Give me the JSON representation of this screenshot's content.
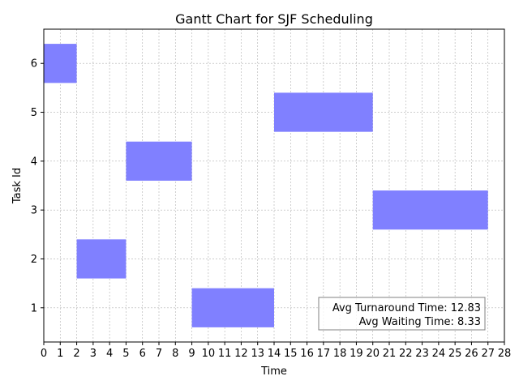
{
  "chart_data": {
    "type": "gantt",
    "title": "Gantt Chart for SJF Scheduling",
    "xlabel": "Time",
    "ylabel": "Task Id",
    "xlim": [
      0,
      28
    ],
    "ylim": [
      0.3,
      6.7
    ],
    "x_ticks": [
      0,
      1,
      2,
      3,
      4,
      5,
      6,
      7,
      8,
      9,
      10,
      11,
      12,
      13,
      14,
      15,
      16,
      17,
      18,
      19,
      20,
      21,
      22,
      23,
      24,
      25,
      26,
      27,
      28
    ],
    "y_ticks": [
      1,
      2,
      3,
      4,
      5,
      6
    ],
    "grid": true,
    "bar_color": "#8080ff",
    "tasks": [
      {
        "id": 6,
        "start": 0,
        "end": 2
      },
      {
        "id": 2,
        "start": 2,
        "end": 5
      },
      {
        "id": 4,
        "start": 5,
        "end": 9
      },
      {
        "id": 1,
        "start": 9,
        "end": 14
      },
      {
        "id": 5,
        "start": 14,
        "end": 20
      },
      {
        "id": 3,
        "start": 20,
        "end": 27
      }
    ],
    "annotation": {
      "position": "bottom-right",
      "lines": [
        "Avg Turnaround Time: 12.83",
        "Avg Waiting Time: 8.33"
      ]
    }
  }
}
